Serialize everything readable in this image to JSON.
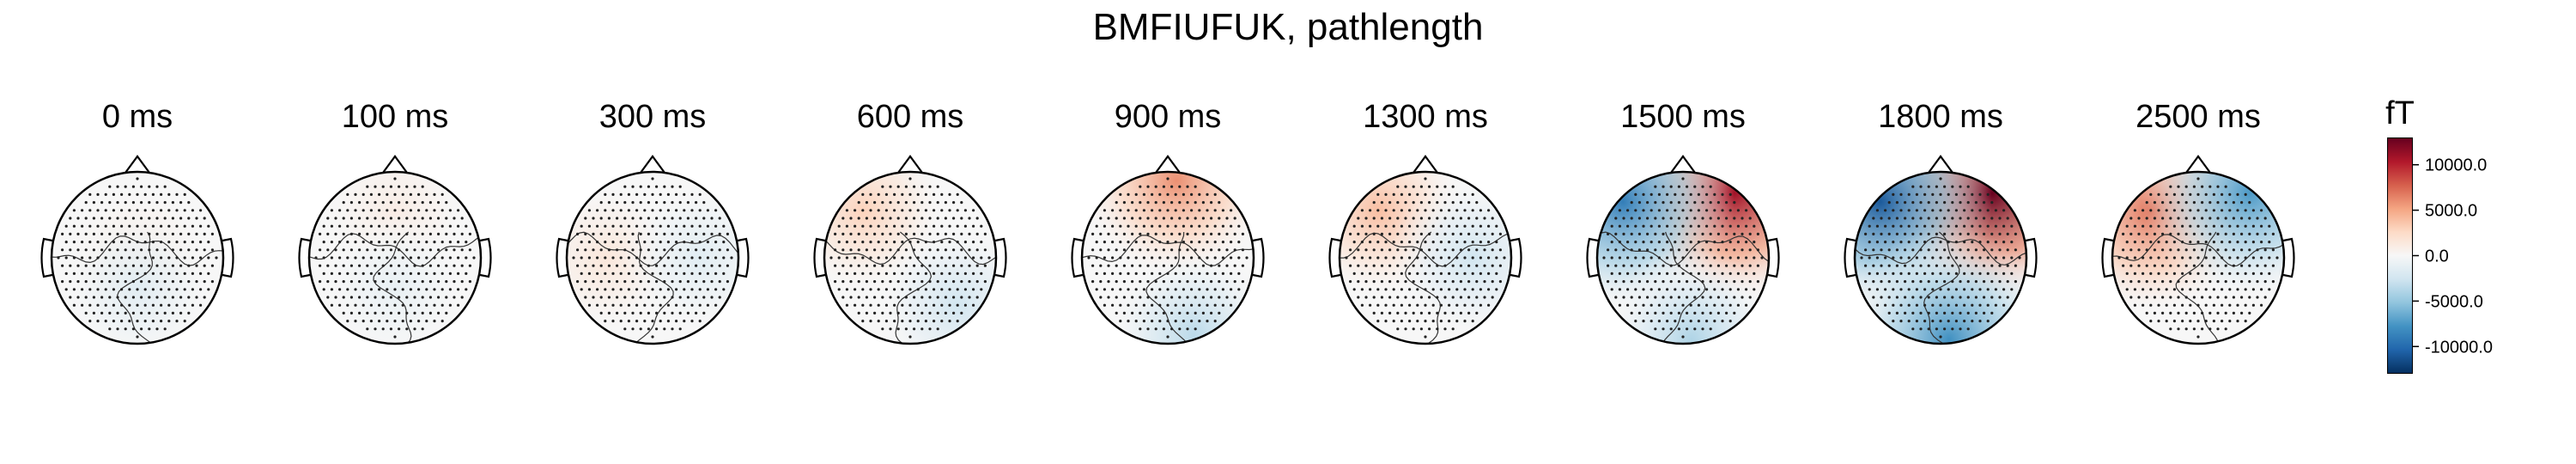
{
  "figure": {
    "title": "BMFIUFUK, pathlength"
  },
  "chart_data": {
    "type": "heatmap",
    "title": "BMFIUFUK, pathlength",
    "panels": [
      {
        "label": "0 ms",
        "time_ms": 0,
        "pattern": [
          {
            "pos": "center",
            "value": 1000
          },
          {
            "pos": "lower-center",
            "value": -1500
          }
        ]
      },
      {
        "label": "100 ms",
        "time_ms": 100,
        "pattern": [
          {
            "pos": "upper",
            "value": 1000
          },
          {
            "pos": "lower-center",
            "value": -1000
          }
        ]
      },
      {
        "label": "300 ms",
        "time_ms": 300,
        "pattern": [
          {
            "pos": "left",
            "value": 1500
          },
          {
            "pos": "right",
            "value": -1500
          }
        ]
      },
      {
        "label": "600 ms",
        "time_ms": 600,
        "pattern": [
          {
            "pos": "upper-left",
            "value": 3000
          },
          {
            "pos": "lower-right",
            "value": -2500
          }
        ]
      },
      {
        "label": "900 ms",
        "time_ms": 900,
        "pattern": [
          {
            "pos": "top-center",
            "value": 6000
          },
          {
            "pos": "bottom-right",
            "value": -3500
          }
        ]
      },
      {
        "label": "1300 ms",
        "time_ms": 1300,
        "pattern": [
          {
            "pos": "upper-left",
            "value": 4000
          },
          {
            "pos": "right",
            "value": -2500
          }
        ]
      },
      {
        "label": "1500 ms",
        "time_ms": 1500,
        "pattern": [
          {
            "pos": "top-right",
            "value": 11000
          },
          {
            "pos": "top-left",
            "value": -9000
          },
          {
            "pos": "bottom",
            "value": -4000
          }
        ]
      },
      {
        "label": "1800 ms",
        "time_ms": 1800,
        "pattern": [
          {
            "pos": "top-right",
            "value": 13000
          },
          {
            "pos": "top-left",
            "value": -11000
          },
          {
            "pos": "bottom",
            "value": -8000
          }
        ]
      },
      {
        "label": "2500 ms",
        "time_ms": 2500,
        "pattern": [
          {
            "pos": "upper-left",
            "value": 7000
          },
          {
            "pos": "top-right",
            "value": -7500
          }
        ]
      }
    ],
    "colorbar": {
      "unit": "fT",
      "range": [
        -13000,
        13000
      ],
      "ticks": [
        10000,
        5000,
        0,
        -5000,
        -10000
      ],
      "tick_labels": [
        "10000.0",
        "5000.0",
        "0.0",
        "-5000.0",
        "-10000.0"
      ],
      "colormap": "RdBu_r",
      "colors": {
        "high": "#67001f",
        "mid": "#f7f7f7",
        "low": "#053061"
      }
    }
  }
}
